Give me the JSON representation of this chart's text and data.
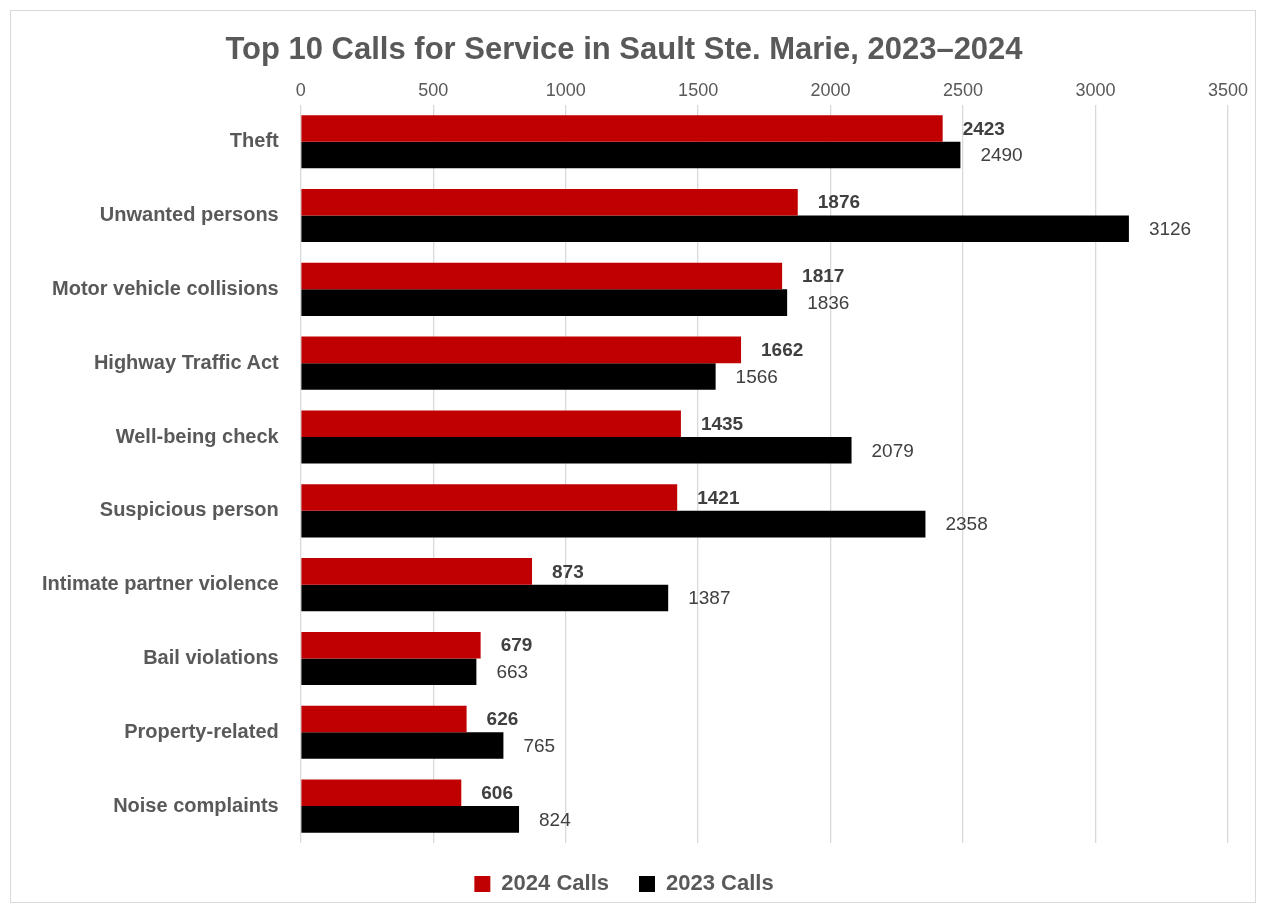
{
  "chart_data": {
    "type": "bar",
    "orientation": "horizontal",
    "title": "Top 10 Calls for Service in Sault Ste. Marie, 2023–2024",
    "categories": [
      "Theft",
      "Unwanted persons",
      "Motor vehicle collisions",
      "Highway Traffic Act",
      "Well-being check",
      "Suspicious person",
      "Intimate partner violence",
      "Bail violations",
      "Property-related",
      "Noise complaints"
    ],
    "series": [
      {
        "name": "2024 Calls",
        "color": "#c00000",
        "values": [
          2423,
          1876,
          1817,
          1662,
          1435,
          1421,
          873,
          679,
          626,
          606
        ]
      },
      {
        "name": "2023 Calls",
        "color": "#000000",
        "values": [
          2490,
          3126,
          1836,
          1566,
          2079,
          2358,
          1387,
          663,
          765,
          824
        ]
      }
    ],
    "xlim": [
      0,
      3500
    ],
    "xticks": [
      0,
      500,
      1000,
      1500,
      2000,
      2500,
      3000,
      3500
    ],
    "grid": "x",
    "legend": "bottom",
    "data_labels": true
  }
}
